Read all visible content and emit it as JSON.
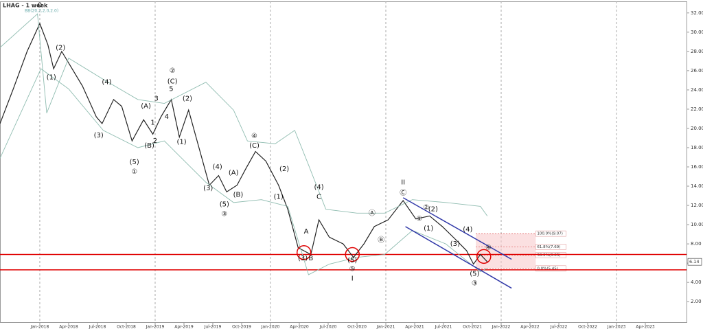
{
  "chart_data": {
    "type": "line",
    "title": "LHAG - 1 week",
    "subtitle": "BB(20,2,2.0,2.0)",
    "xlim": [
      2017.655,
      2023.607
    ],
    "ylim": [
      -0.2,
      33.2
    ],
    "xticks": [
      {
        "value": 2018,
        "label": "Jan-2018"
      },
      {
        "value": 2018.25,
        "label": "Apr-2018"
      },
      {
        "value": 2018.5,
        "label": "Jul-2018"
      },
      {
        "value": 2018.75,
        "label": "Oct-2018"
      },
      {
        "value": 2019,
        "label": "Jan-2019"
      },
      {
        "value": 2019.25,
        "label": "Apr-2019"
      },
      {
        "value": 2019.5,
        "label": "Jul-2019"
      },
      {
        "value": 2019.75,
        "label": "Oct-2019"
      },
      {
        "value": 2020,
        "label": "Jan-2020"
      },
      {
        "value": 2020.25,
        "label": "Apr-2020"
      },
      {
        "value": 2020.5,
        "label": "Jul-2020"
      },
      {
        "value": 2020.75,
        "label": "Oct-2020"
      },
      {
        "value": 2021,
        "label": "Jan-2021"
      },
      {
        "value": 2021.25,
        "label": "Apr-2021"
      },
      {
        "value": 2021.5,
        "label": "Jul-2021"
      },
      {
        "value": 2021.75,
        "label": "Oct-2021"
      },
      {
        "value": 2022,
        "label": "Jan-2022"
      },
      {
        "value": 2022.25,
        "label": "Apr-2022"
      },
      {
        "value": 2022.5,
        "label": "Jul-2022"
      },
      {
        "value": 2022.75,
        "label": "Oct-2022"
      },
      {
        "value": 2023,
        "label": "Jan-2023"
      },
      {
        "value": 2023.25,
        "label": "Apr-2023"
      }
    ],
    "yticks": [
      {
        "value": 2,
        "label": "2.00"
      },
      {
        "value": 4,
        "label": "4.00"
      },
      {
        "value": 6,
        "label": "6.00"
      },
      {
        "value": 8,
        "label": "8.00"
      },
      {
        "value": 10,
        "label": "10.00"
      },
      {
        "value": 12,
        "label": "12.00"
      },
      {
        "value": 14,
        "label": "14.00"
      },
      {
        "value": 16,
        "label": "16.00"
      },
      {
        "value": 18,
        "label": "18.00"
      },
      {
        "value": 20,
        "label": "20.00"
      },
      {
        "value": 22,
        "label": "22.00"
      },
      {
        "value": 24,
        "label": "24.00"
      },
      {
        "value": 26,
        "label": "26.00"
      },
      {
        "value": 28,
        "label": "28.00"
      },
      {
        "value": 30,
        "label": "30.00"
      },
      {
        "value": 32,
        "label": "32.00"
      }
    ],
    "series": [
      {
        "color": "#222222",
        "x": [
          2017.655,
          2017.77,
          2017.89,
          2018.0,
          2018.07,
          2018.12,
          2018.19,
          2018.28,
          2018.37,
          2018.49,
          2018.54,
          2018.64,
          2018.71,
          2018.8,
          2018.9,
          2018.98,
          2019.05,
          2019.14,
          2019.21,
          2019.29,
          2019.38,
          2019.47,
          2019.55,
          2019.62,
          2019.71,
          2019.79,
          2019.87,
          2019.96,
          2020.07,
          2020.15,
          2020.24,
          2020.35,
          2020.42,
          2020.51,
          2020.63,
          2020.72,
          2020.81,
          2020.9,
          2021.02,
          2021.15,
          2021.26,
          2021.38,
          2021.49,
          2021.61,
          2021.7,
          2021.76,
          2021.82,
          2021.88
        ],
        "values": [
          20.5,
          24.1,
          28.0,
          30.9,
          28.7,
          26.2,
          28.0,
          26.2,
          24.4,
          21.2,
          20.5,
          23.0,
          22.3,
          18.7,
          20.9,
          19.4,
          21.2,
          23.0,
          19.1,
          21.9,
          18.0,
          14.1,
          15.1,
          13.4,
          14.1,
          15.9,
          17.6,
          16.6,
          14.1,
          11.6,
          7.6,
          6.9,
          10.5,
          8.7,
          8.0,
          6.6,
          8.0,
          9.8,
          10.5,
          12.5,
          10.6,
          10.9,
          9.8,
          8.4,
          7.3,
          5.9,
          6.9,
          6.14
        ]
      },
      {
        "color": "#8fbcb0",
        "x": [
          2017.655,
          2017.98,
          2018.06,
          2018.25,
          2018.55,
          2018.85,
          2019.08,
          2019.44,
          2019.68,
          2019.8,
          2020.04,
          2020.21,
          2020.33,
          2020.48,
          2020.75,
          2020.99,
          2021.23,
          2021.52,
          2021.82,
          2021.88
        ],
        "values": [
          28.4,
          31.9,
          21.6,
          27.3,
          25.1,
          23.0,
          22.6,
          24.8,
          21.9,
          18.7,
          18.4,
          19.8,
          16.2,
          11.6,
          11.2,
          11.2,
          12.6,
          12.3,
          11.9,
          10.9
        ]
      },
      {
        "color": "#8fbcb0",
        "x": [
          2017.655,
          2018.01,
          2018.25,
          2018.55,
          2018.85,
          2019.08,
          2019.44,
          2019.68,
          2019.92,
          2020.15,
          2020.33,
          2020.51,
          2020.75,
          2020.99,
          2021.23,
          2021.52,
          2021.82,
          2021.88
        ],
        "values": [
          16.9,
          26.2,
          24.1,
          19.8,
          18.0,
          18.7,
          14.4,
          12.3,
          12.6,
          11.9,
          4.8,
          5.9,
          6.6,
          6.9,
          9.4,
          8.0,
          5.1,
          5.5
        ]
      }
    ],
    "support_levels": [
      6.9,
      5.3
    ],
    "support_color": "#e00000",
    "channel_lines": [
      {
        "x": [
          2021.15,
          2022.09
        ],
        "y": [
          12.8,
          6.4
        ]
      },
      {
        "x": [
          2021.17,
          2022.09
        ],
        "y": [
          9.8,
          3.4
        ]
      }
    ],
    "channel_color": "#3038a8",
    "highlights": [
      {
        "x": 2020.29,
        "y": 7.1
      },
      {
        "x": 2020.71,
        "y": 6.9
      },
      {
        "x": 2021.85,
        "y": 6.7
      }
    ],
    "fib": {
      "x": [
        2021.78,
        2022.3
      ],
      "levels": [
        {
          "label": "100.0%(9.07)",
          "value": 9.07
        },
        {
          "label": "61.8%(7.69)",
          "value": 7.69
        },
        {
          "label": "38.2%(6.83)",
          "value": 6.83
        },
        {
          "label": "0.0%(5.45)",
          "value": 5.45
        }
      ]
    },
    "annotations": [
      {
        "text": "0",
        "x": 2018.0,
        "y": 32.8
      },
      {
        "text": "(2)",
        "x": 2018.18,
        "y": 28.4
      },
      {
        "text": "(1)",
        "x": 2018.1,
        "y": 25.3
      },
      {
        "text": "(4)",
        "x": 2018.58,
        "y": 24.8
      },
      {
        "text": "(3)",
        "x": 2018.51,
        "y": 19.3
      },
      {
        "text": "(A)",
        "x": 2018.92,
        "y": 22.3
      },
      {
        "text": "(B)",
        "x": 2018.95,
        "y": 18.2
      },
      {
        "text": "(5)",
        "x": 2018.82,
        "y": 16.5
      },
      {
        "text": "①",
        "x": 2018.82,
        "y": 15.5
      },
      {
        "text": "②",
        "x": 2019.15,
        "y": 26.0
      },
      {
        "text": "(C)",
        "x": 2019.15,
        "y": 24.9
      },
      {
        "text": "5",
        "x": 2019.14,
        "y": 24.1
      },
      {
        "text": "3",
        "x": 2019.01,
        "y": 23.1
      },
      {
        "text": "4",
        "x": 2019.1,
        "y": 21.2
      },
      {
        "text": "1",
        "x": 2018.98,
        "y": 20.6
      },
      {
        "text": "2",
        "x": 2019.0,
        "y": 18.7
      },
      {
        "text": "(2)",
        "x": 2019.28,
        "y": 23.1
      },
      {
        "text": "(1)",
        "x": 2019.23,
        "y": 18.6
      },
      {
        "text": "(4)",
        "x": 2019.54,
        "y": 16.0
      },
      {
        "text": "(3)",
        "x": 2019.46,
        "y": 13.8
      },
      {
        "text": "(A)",
        "x": 2019.68,
        "y": 15.4
      },
      {
        "text": "(B)",
        "x": 2019.72,
        "y": 13.1
      },
      {
        "text": "(5)",
        "x": 2019.6,
        "y": 12.1
      },
      {
        "text": "③",
        "x": 2019.6,
        "y": 11.1
      },
      {
        "text": "④",
        "x": 2019.86,
        "y": 19.2
      },
      {
        "text": "(C)",
        "x": 2019.86,
        "y": 18.2
      },
      {
        "text": "(2)",
        "x": 2020.12,
        "y": 15.8
      },
      {
        "text": "(1)",
        "x": 2020.07,
        "y": 12.9
      },
      {
        "text": "(4)",
        "x": 2020.42,
        "y": 13.9
      },
      {
        "text": "C",
        "x": 2020.42,
        "y": 12.9
      },
      {
        "text": "A",
        "x": 2020.31,
        "y": 9.3
      },
      {
        "text": "B",
        "x": 2020.35,
        "y": 6.5
      },
      {
        "text": "(3)",
        "x": 2020.28,
        "y": 6.5
      },
      {
        "text": "(5)",
        "x": 2020.71,
        "y": 6.3
      },
      {
        "text": "⑤",
        "x": 2020.71,
        "y": 5.4
      },
      {
        "text": "I",
        "x": 2020.71,
        "y": 4.4
      },
      {
        "text": "Ⓐ",
        "x": 2020.88,
        "y": 11.2
      },
      {
        "text": "Ⓑ",
        "x": 2020.96,
        "y": 8.4
      },
      {
        "text": "II",
        "x": 2021.15,
        "y": 14.4
      },
      {
        "text": "Ⓒ",
        "x": 2021.15,
        "y": 13.3
      },
      {
        "text": "②",
        "x": 2021.35,
        "y": 11.8
      },
      {
        "text": "(2)",
        "x": 2021.41,
        "y": 11.6
      },
      {
        "text": "①",
        "x": 2021.29,
        "y": 10.6
      },
      {
        "text": "(1)",
        "x": 2021.37,
        "y": 9.6
      },
      {
        "text": "(4)",
        "x": 2021.71,
        "y": 9.5
      },
      {
        "text": "(3)",
        "x": 2021.6,
        "y": 8.0
      },
      {
        "text": "④",
        "x": 2021.89,
        "y": 7.6
      },
      {
        "text": "(5)",
        "x": 2021.77,
        "y": 4.9
      },
      {
        "text": "③",
        "x": 2021.77,
        "y": 3.9
      }
    ]
  }
}
